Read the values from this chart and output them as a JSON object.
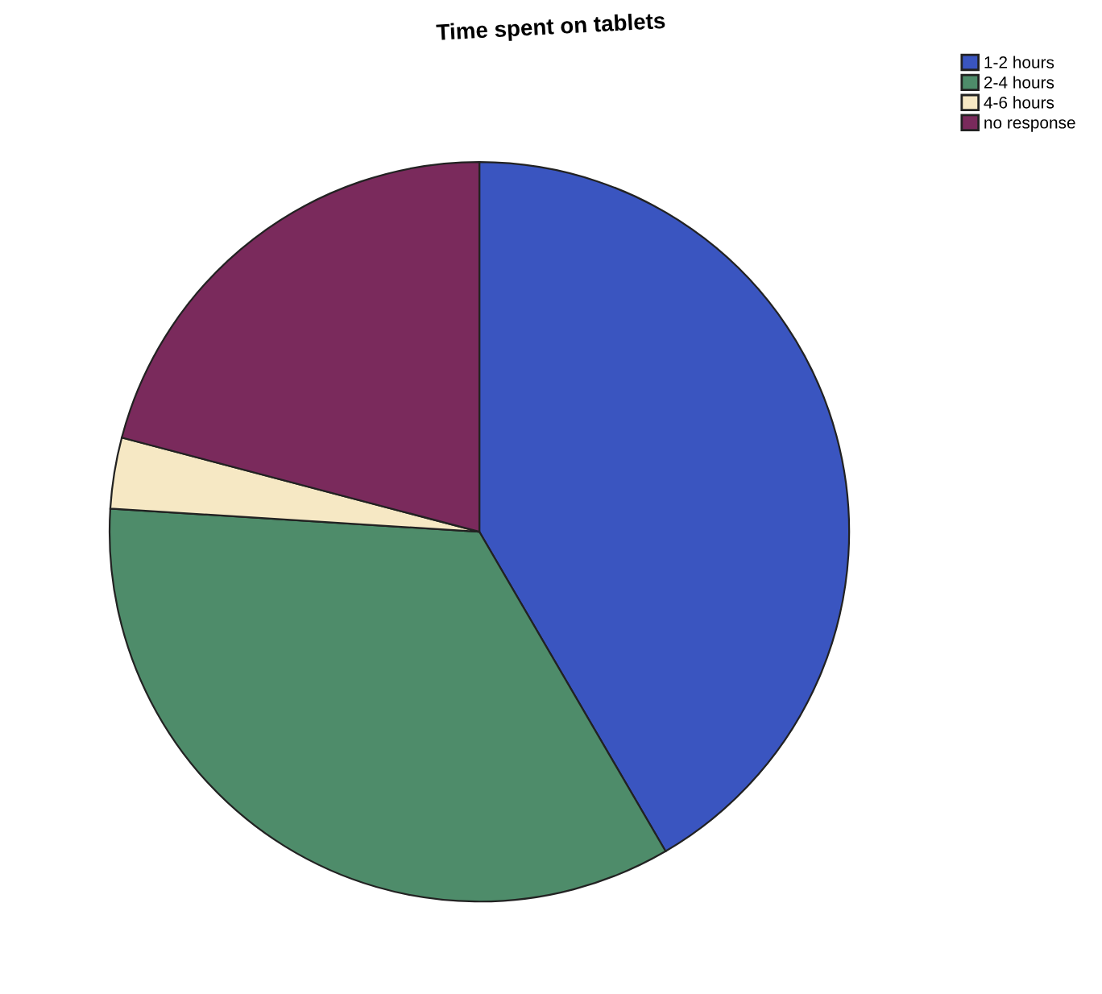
{
  "chart_data": {
    "type": "pie",
    "title": "Time spent on tablets",
    "categories": [
      "1-2 hours",
      "2-4 hours",
      "4-6 hours",
      "no response"
    ],
    "values": [
      41.6,
      34.4,
      3.1,
      20.9
    ],
    "colors": [
      "#3a55c0",
      "#4e8c6a",
      "#f6e8c4",
      "#7a2a5c"
    ],
    "legend": "top right"
  }
}
